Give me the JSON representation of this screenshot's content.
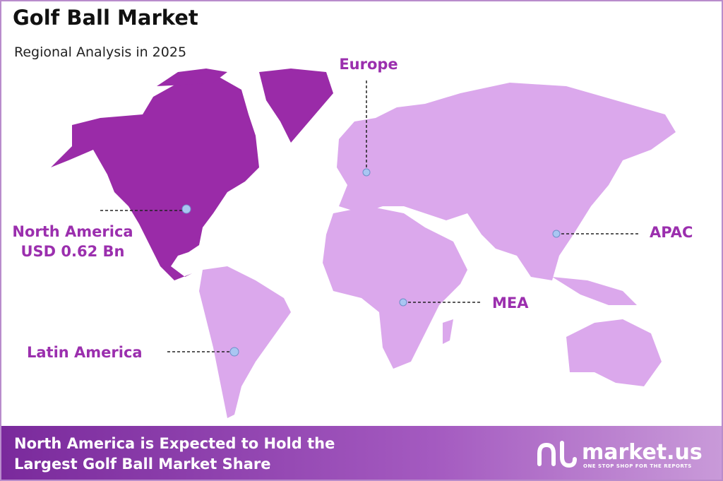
{
  "header": {
    "title": "Golf Ball Market",
    "subtitle": "Regional Analysis in 2025"
  },
  "regions": [
    {
      "label": "Europe"
    },
    {
      "label": "North America",
      "value_text": "USD 0.62 Bn"
    },
    {
      "label": "APAC"
    },
    {
      "label": "MEA"
    },
    {
      "label": "Latin America"
    }
  ],
  "footer": {
    "lines": [
      "North America is Expected to Hold the",
      "Largest Golf Ball Market Share"
    ]
  },
  "logo": {
    "name": "market.us",
    "tagline": "ONE STOP SHOP FOR THE REPORTS"
  }
}
